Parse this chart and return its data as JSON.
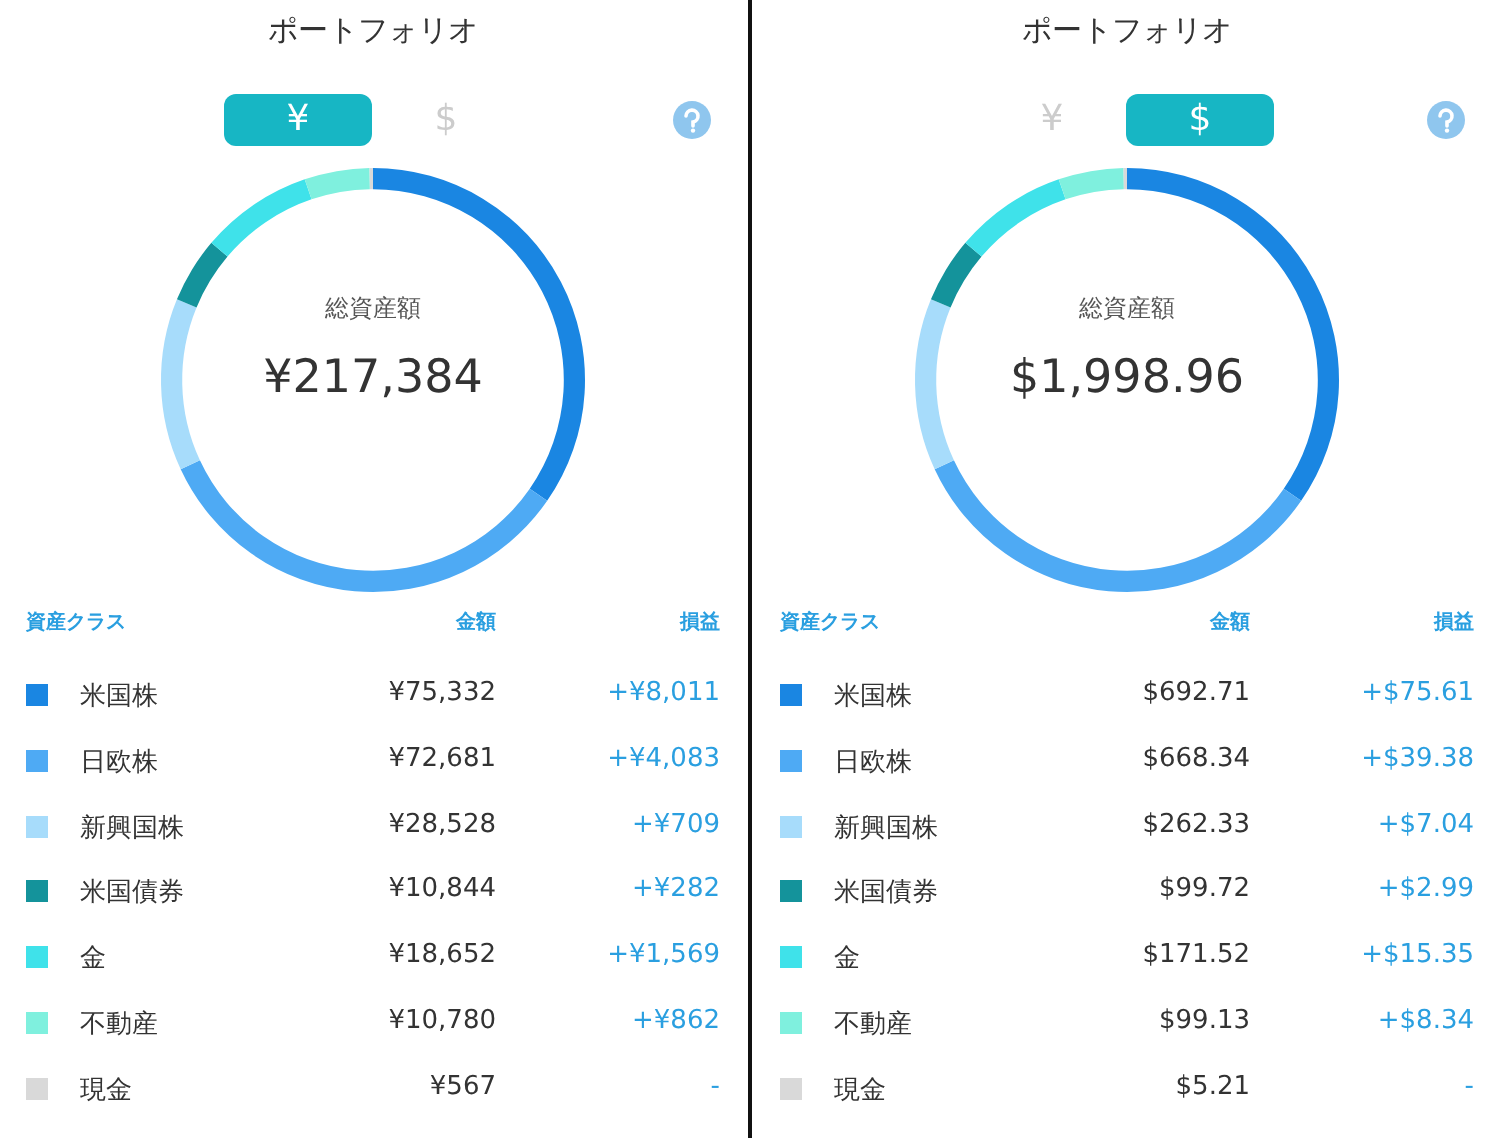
{
  "chart_data": [
    {
      "type": "donut",
      "title": "ポートフォリオ",
      "legend": "bottom",
      "legend_title": "資産クラス",
      "categories": [
        "米国株",
        "日欧株",
        "新興国株",
        "米国債券",
        "金",
        "不動産",
        "現金"
      ],
      "values": [
        75332,
        72681,
        28528,
        10844,
        18652,
        10780,
        567
      ],
      "value_labels": [
        "¥75,332",
        "¥72,681",
        "¥28,528",
        "¥10,844",
        "¥18,652",
        "¥10,780",
        "¥567"
      ],
      "colors": [
        "#1a86e2",
        "#4eaaf4",
        "#a7dcfb",
        "#14939b",
        "#3fe2ea",
        "#7ff0de",
        "#d9d9d9"
      ],
      "annotations": [
        "総資産額",
        "¥217,384",
        "金額",
        "損益",
        "+¥8,011",
        "+¥4,083",
        "+¥709",
        "+¥282",
        "+¥1,569",
        "+¥862",
        "-",
        "¥",
        "$"
      ]
    },
    {
      "type": "donut",
      "title": "ポートフォリオ",
      "legend": "bottom",
      "legend_title": "資産クラス",
      "categories": [
        "米国株",
        "日欧株",
        "新興国株",
        "米国債券",
        "金",
        "不動産",
        "現金"
      ],
      "values": [
        692.71,
        668.34,
        262.33,
        99.72,
        171.52,
        99.13,
        5.21
      ],
      "value_labels": [
        "$692.71",
        "$668.34",
        "$262.33",
        "$99.72",
        "$171.52",
        "$99.13",
        "$5.21"
      ],
      "colors": [
        "#1a86e2",
        "#4eaaf4",
        "#a7dcfb",
        "#14939b",
        "#3fe2ea",
        "#7ff0de",
        "#d9d9d9"
      ],
      "annotations": [
        "総資産額",
        "$1,998.96",
        "金額",
        "損益",
        "+$75.61",
        "+$39.38",
        "+$7.04",
        "+$2.99",
        "+$15.35",
        "+$8.34",
        "-",
        "¥",
        "$"
      ]
    }
  ]
}
